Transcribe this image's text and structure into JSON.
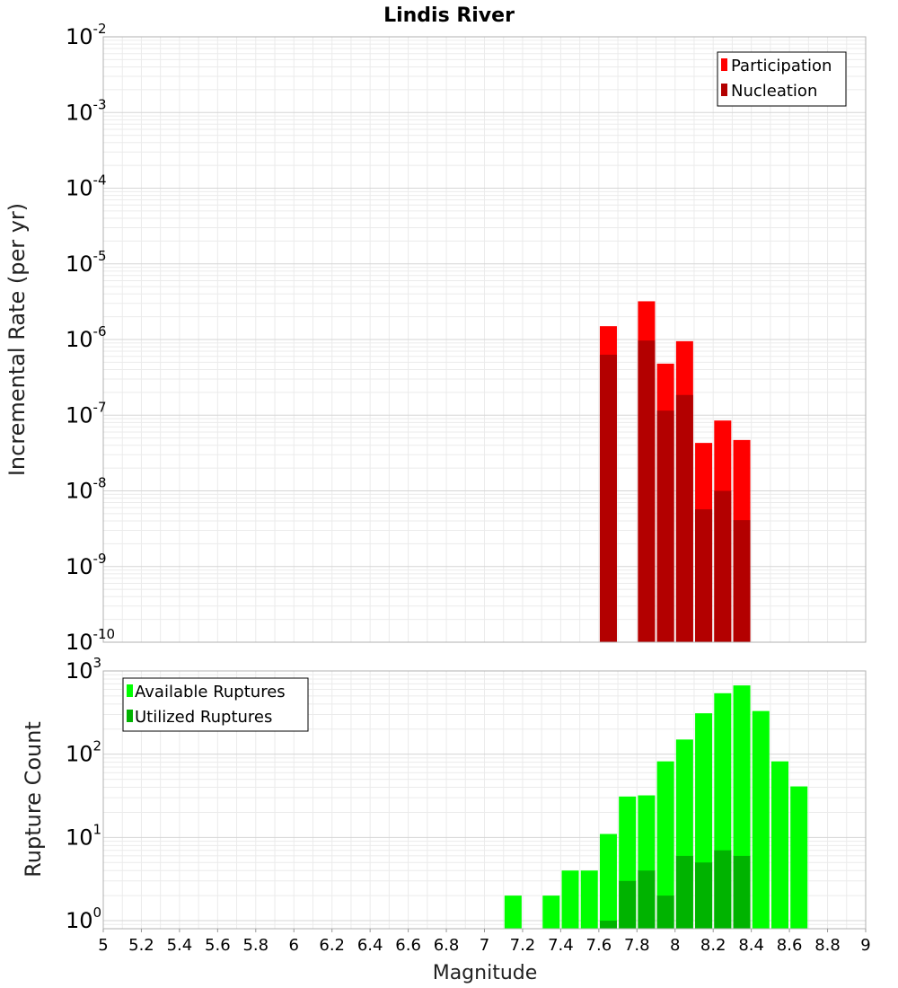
{
  "chart_data": [
    {
      "type": "bar",
      "title": "Lindis River",
      "xlabel": "",
      "ylabel": "Incremental Rate (per yr)",
      "yscale": "log",
      "xlim": [
        5,
        9
      ],
      "ylim": [
        1e-10,
        0.01
      ],
      "yticks": [
        {
          "base": "10",
          "exp": "-10"
        },
        {
          "base": "10",
          "exp": "-9"
        },
        {
          "base": "10",
          "exp": "-8"
        },
        {
          "base": "10",
          "exp": "-7"
        },
        {
          "base": "10",
          "exp": "-6"
        },
        {
          "base": "10",
          "exp": "-5"
        },
        {
          "base": "10",
          "exp": "-4"
        },
        {
          "base": "10",
          "exp": "-3"
        },
        {
          "base": "10",
          "exp": "-2"
        }
      ],
      "grid": true,
      "legend_position": "top-right",
      "x": [
        7.65,
        7.85,
        7.95,
        8.05,
        8.15,
        8.25,
        8.35
      ],
      "series": [
        {
          "name": "Participation",
          "color": "#ff0000",
          "values": [
            1.5e-06,
            3.2e-06,
            4.8e-07,
            9.5e-07,
            4.3e-08,
            8.5e-08,
            4.7e-08
          ]
        },
        {
          "name": "Nucleation",
          "color": "#b30000",
          "values": [
            6.3e-07,
            9.7e-07,
            1.15e-07,
            1.85e-07,
            5.7e-09,
            1e-08,
            4.1e-09
          ]
        }
      ]
    },
    {
      "type": "bar",
      "title": "",
      "xlabel": "Magnitude",
      "ylabel": "Rupture Count",
      "yscale": "log",
      "xlim": [
        5,
        9
      ],
      "ylim": [
        0.8,
        1000
      ],
      "xticks": [
        "5",
        "5.2",
        "5.4",
        "5.6",
        "5.8",
        "6",
        "6.2",
        "6.4",
        "6.6",
        "6.8",
        "7",
        "7.2",
        "7.4",
        "7.6",
        "7.8",
        "8",
        "8.2",
        "8.4",
        "8.6",
        "8.8",
        "9"
      ],
      "yticks": [
        {
          "base": "10",
          "exp": "0"
        },
        {
          "base": "10",
          "exp": "1"
        },
        {
          "base": "10",
          "exp": "2"
        },
        {
          "base": "10",
          "exp": "3"
        }
      ],
      "grid": true,
      "legend_position": "top-left",
      "x": [
        7.15,
        7.35,
        7.45,
        7.55,
        7.65,
        7.75,
        7.85,
        7.95,
        8.05,
        8.15,
        8.25,
        8.35,
        8.45,
        8.55,
        8.65
      ],
      "series": [
        {
          "name": "Available Ruptures",
          "color": "#00ff00",
          "values": [
            2,
            2,
            4,
            4,
            11,
            31,
            32,
            82,
            150,
            310,
            540,
            670,
            330,
            82,
            41
          ]
        },
        {
          "name": "Utilized Ruptures",
          "color": "#00b300",
          "values": [
            0,
            0,
            0,
            0,
            1,
            3,
            4,
            2,
            6,
            5,
            7,
            6,
            0,
            0,
            0
          ]
        }
      ]
    }
  ]
}
